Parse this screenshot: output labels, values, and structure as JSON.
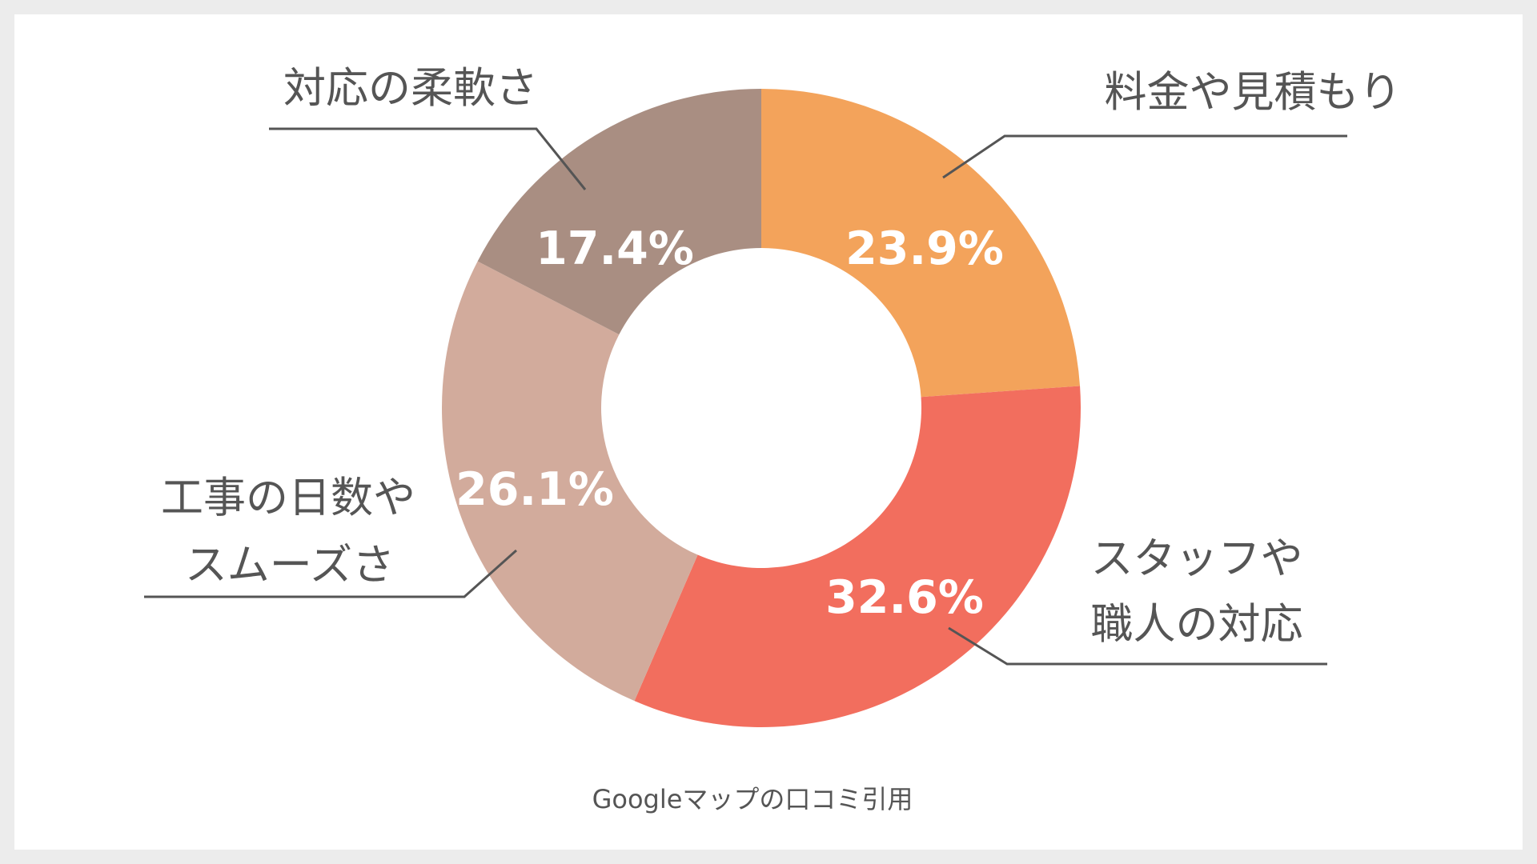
{
  "chart_data": {
    "type": "pie",
    "variant": "donut",
    "slices": [
      {
        "label": "料金や見積もり",
        "label_lines": [
          "料金や見積もり"
        ],
        "value": 23.9,
        "value_label": "23.9%",
        "color": "#F3A35B"
      },
      {
        "label": "スタッフや職人の対応",
        "label_lines": [
          "スタッフや",
          "職人の対応"
        ],
        "value": 32.6,
        "value_label": "32.6%",
        "color": "#F26E5E"
      },
      {
        "label": "工事の日数やスムーズさ",
        "label_lines": [
          "工事の日数や",
          "スムーズさ"
        ],
        "value": 26.1,
        "value_label": "26.1%",
        "color": "#D2AB9C"
      },
      {
        "label": "対応の柔軟さ",
        "label_lines": [
          "対応の柔軟さ"
        ],
        "value": 17.4,
        "value_label": "17.4%",
        "color": "#A98E82"
      }
    ],
    "start_angle": "12 o'clock",
    "direction": "clockwise",
    "legend": "callout labels"
  },
  "source_note": "Googleマップの口コミ引用"
}
